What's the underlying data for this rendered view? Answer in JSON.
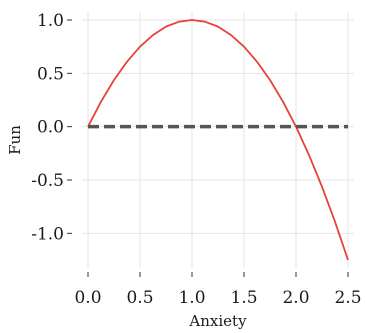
{
  "chart_data": {
    "type": "line",
    "xlabel": "Anxiety",
    "ylabel": "Fun",
    "xlim": [
      0,
      2.5
    ],
    "ylim": [
      -1.25,
      1.0
    ],
    "x_ticks": [
      0.0,
      0.5,
      1.0,
      1.5,
      2.0,
      2.5
    ],
    "x_tick_labels": [
      "0.0",
      "0.5",
      "1.0",
      "1.5",
      "2.0",
      "2.5"
    ],
    "y_ticks": [
      1.0,
      0.5,
      0.0,
      -0.5,
      -1.0
    ],
    "y_tick_labels": [
      "1.0",
      "0.5",
      "0.0",
      "-0.5",
      "-1.0"
    ],
    "grid": true,
    "series": [
      {
        "color": "#e8403a",
        "style": "solid",
        "x": [
          0.0,
          0.125,
          0.25,
          0.375,
          0.5,
          0.625,
          0.75,
          0.875,
          1.0,
          1.125,
          1.25,
          1.375,
          1.5,
          1.625,
          1.75,
          1.875,
          2.0,
          2.125,
          2.25,
          2.375,
          2.5
        ],
        "values": [
          0.0,
          0.234,
          0.438,
          0.609,
          0.75,
          0.859,
          0.938,
          0.984,
          1.0,
          0.984,
          0.938,
          0.859,
          0.75,
          0.609,
          0.438,
          0.234,
          0.0,
          -0.266,
          -0.563,
          -0.891,
          -1.25
        ]
      },
      {
        "color": "#555555",
        "style": "dashed",
        "x": [
          0.0,
          2.5
        ],
        "values": [
          0.0,
          0.0
        ]
      }
    ]
  }
}
